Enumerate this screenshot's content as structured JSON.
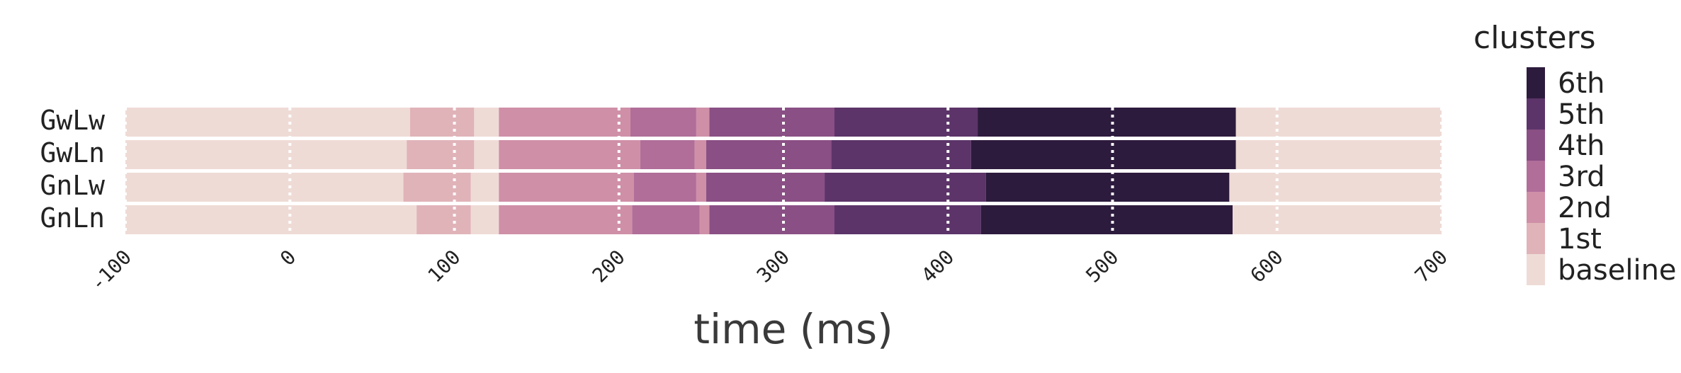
{
  "chart_data": {
    "type": "heatmap",
    "xlabel": "time (ms)",
    "xlim": [
      -100,
      700
    ],
    "xticks": [
      -100,
      0,
      100,
      200,
      300,
      400,
      500,
      600,
      700
    ],
    "grid": "vertical dotted white lines at ticks",
    "rows": [
      "GwLw",
      "GwLn",
      "GnLw",
      "GnLn"
    ],
    "legend": {
      "title": "clusters",
      "position": "right",
      "categories": [
        "6th",
        "5th",
        "4th",
        "3rd",
        "2nd",
        "1st",
        "baseline"
      ]
    },
    "colors": {
      "baseline": "#efdbd6",
      "1st": "#e0b3b9",
      "2nd": "#cf8fa7",
      "3rd": "#b16e99",
      "4th": "#8a4f84",
      "5th": "#5c3469",
      "6th": "#2d1b3d"
    },
    "series": [
      {
        "name": "GwLw",
        "segments": [
          {
            "start": -100,
            "end": 73,
            "cluster": "baseline"
          },
          {
            "start": 73,
            "end": 112,
            "cluster": "1st"
          },
          {
            "start": 112,
            "end": 127,
            "cluster": "baseline"
          },
          {
            "start": 127,
            "end": 207,
            "cluster": "2nd"
          },
          {
            "start": 207,
            "end": 247,
            "cluster": "3rd"
          },
          {
            "start": 247,
            "end": 255,
            "cluster": "2nd"
          },
          {
            "start": 255,
            "end": 331,
            "cluster": "4th"
          },
          {
            "start": 331,
            "end": 418,
            "cluster": "5th"
          },
          {
            "start": 418,
            "end": 575,
            "cluster": "6th"
          },
          {
            "start": 575,
            "end": 700,
            "cluster": "baseline"
          }
        ]
      },
      {
        "name": "GwLn",
        "segments": [
          {
            "start": -100,
            "end": 71,
            "cluster": "baseline"
          },
          {
            "start": 71,
            "end": 112,
            "cluster": "1st"
          },
          {
            "start": 112,
            "end": 127,
            "cluster": "baseline"
          },
          {
            "start": 127,
            "end": 213,
            "cluster": "2nd"
          },
          {
            "start": 213,
            "end": 246,
            "cluster": "3rd"
          },
          {
            "start": 246,
            "end": 253,
            "cluster": "2nd"
          },
          {
            "start": 253,
            "end": 329,
            "cluster": "4th"
          },
          {
            "start": 329,
            "end": 414,
            "cluster": "5th"
          },
          {
            "start": 414,
            "end": 575,
            "cluster": "6th"
          },
          {
            "start": 575,
            "end": 700,
            "cluster": "baseline"
          }
        ]
      },
      {
        "name": "GnLw",
        "segments": [
          {
            "start": -100,
            "end": 69,
            "cluster": "baseline"
          },
          {
            "start": 69,
            "end": 110,
            "cluster": "1st"
          },
          {
            "start": 110,
            "end": 127,
            "cluster": "baseline"
          },
          {
            "start": 127,
            "end": 209,
            "cluster": "2nd"
          },
          {
            "start": 209,
            "end": 247,
            "cluster": "3rd"
          },
          {
            "start": 247,
            "end": 253,
            "cluster": "2nd"
          },
          {
            "start": 253,
            "end": 325,
            "cluster": "4th"
          },
          {
            "start": 325,
            "end": 423,
            "cluster": "5th"
          },
          {
            "start": 423,
            "end": 571,
            "cluster": "6th"
          },
          {
            "start": 571,
            "end": 700,
            "cluster": "baseline"
          }
        ]
      },
      {
        "name": "GnLn",
        "segments": [
          {
            "start": -100,
            "end": 77,
            "cluster": "baseline"
          },
          {
            "start": 77,
            "end": 110,
            "cluster": "1st"
          },
          {
            "start": 110,
            "end": 127,
            "cluster": "baseline"
          },
          {
            "start": 127,
            "end": 208,
            "cluster": "2nd"
          },
          {
            "start": 208,
            "end": 249,
            "cluster": "3rd"
          },
          {
            "start": 249,
            "end": 255,
            "cluster": "2nd"
          },
          {
            "start": 255,
            "end": 331,
            "cluster": "4th"
          },
          {
            "start": 331,
            "end": 420,
            "cluster": "5th"
          },
          {
            "start": 420,
            "end": 573,
            "cluster": "6th"
          },
          {
            "start": 573,
            "end": 700,
            "cluster": "baseline"
          }
        ]
      }
    ]
  }
}
